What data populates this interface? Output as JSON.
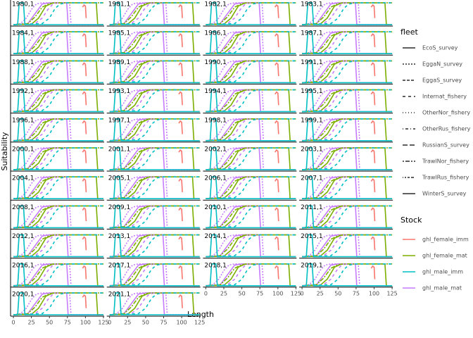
{
  "chart_data": {
    "type": "line",
    "xlabel": "Length",
    "ylabel": "Suitability",
    "xlim": [
      0,
      125
    ],
    "ylim": [
      0,
      1
    ],
    "xticks": [
      0,
      25,
      50,
      75,
      100,
      125
    ],
    "panels": [
      "1980,1",
      "1981,1",
      "1982,1",
      "1983,1",
      "1984,1",
      "1985,1",
      "1986,1",
      "1987,1",
      "1988,1",
      "1989,1",
      "1990,1",
      "1991,1",
      "1992,1",
      "1993,1",
      "1994,1",
      "1995,1",
      "1996,1",
      "1997,1",
      "1998,1",
      "1999,1",
      "2000,1",
      "2001,1",
      "2002,1",
      "2003,1",
      "2004,1",
      "2005,1",
      "2006,1",
      "2007,1",
      "2008,1",
      "2009,1",
      "2010,1",
      "2011,1",
      "2012,1",
      "2013,1",
      "2014,1",
      "2015,1",
      "2016,1",
      "2017,1",
      "2018,1",
      "2019,1",
      "2020,1",
      "2021,1"
    ],
    "fleet_title": "fleet",
    "fleets": [
      {
        "name": "EcoS_survey",
        "dash": "none"
      },
      {
        "name": "EggaN_survey",
        "dash": "2 2"
      },
      {
        "name": "EggaS_survey",
        "dash": "4 2"
      },
      {
        "name": "Internat_fishery",
        "dash": "4 4"
      },
      {
        "name": "OtherNor_fishery",
        "dash": "1 3"
      },
      {
        "name": "OtherRus_fishery",
        "dash": "1 3 4 3"
      },
      {
        "name": "RussianS_survey",
        "dash": "7 3"
      },
      {
        "name": "TrawlNor_fishery",
        "dash": "2 2 6 2"
      },
      {
        "name": "TrawlRus_fishery",
        "dash": "1 2 2 2 3 2 4 2"
      },
      {
        "name": "WinterS_survey",
        "dash": "none"
      }
    ],
    "stock_title": "Stock",
    "stocks": [
      {
        "name": "ghl_female_imm",
        "color": "#F8766D"
      },
      {
        "name": "ghl_female_mat",
        "color": "#7CAE00"
      },
      {
        "name": "ghl_male_imm",
        "color": "#00BFC4"
      },
      {
        "name": "ghl_male_mat",
        "color": "#C77CFF"
      }
    ],
    "series": [
      {
        "name": "ghl_male_mat",
        "fleet": "EcoS_survey",
        "color": "#C77CFF",
        "x": [
          0,
          20,
          30,
          40,
          50,
          74,
          76,
          125
        ],
        "values": [
          0,
          0.05,
          0.5,
          0.95,
          1,
          1,
          0,
          0
        ]
      },
      {
        "name": "ghl_female_mat",
        "fleet": "EcoS_survey",
        "color": "#7CAE00",
        "x": [
          0,
          25,
          35,
          45,
          55,
          115,
          117,
          125
        ],
        "values": [
          0,
          0.02,
          0.3,
          0.85,
          1,
          1,
          0,
          0
        ]
      },
      {
        "name": "ghl_male_mat",
        "fleet": "EggaN_survey",
        "color": "#C77CFF",
        "x": [
          0,
          10,
          18,
          25,
          32,
          40,
          78,
          80,
          125
        ],
        "values": [
          0,
          0.05,
          0.3,
          0.7,
          0.95,
          1,
          1,
          0,
          0
        ]
      },
      {
        "name": "ghl_male_mat",
        "fleet": "Internat_fishery",
        "color": "#C77CFF",
        "x": [
          0,
          30,
          40,
          48,
          55,
          62,
          125
        ],
        "values": [
          0,
          0.05,
          0.3,
          0.7,
          0.95,
          1,
          1
        ]
      },
      {
        "name": "ghl_female_mat",
        "fleet": "TrawlNor_fishery",
        "color": "#7CAE00",
        "x": [
          0,
          20,
          30,
          40,
          50,
          60,
          125
        ],
        "values": [
          0,
          0.05,
          0.35,
          0.8,
          0.97,
          1,
          1
        ]
      },
      {
        "name": "ghl_male_imm",
        "fleet": "Internat_fishery",
        "color": "#00BFC4",
        "x": [
          0,
          40,
          50,
          58,
          65,
          75,
          125
        ],
        "values": [
          0,
          0.05,
          0.3,
          0.75,
          0.95,
          1,
          1
        ]
      },
      {
        "name": "ghl_male_imm",
        "fleet": "WinterS_survey",
        "color": "#00BFC4",
        "x": [
          0,
          6,
          8,
          14,
          16,
          125
        ],
        "values": [
          0,
          0,
          1,
          1,
          0,
          0
        ]
      },
      {
        "name": "ghl_female_imm",
        "fleet": "EcoS_survey",
        "color": "#F8766D",
        "x": [
          96,
          98,
          100,
          101
        ],
        "values": [
          0.8,
          0.9,
          0.85,
          0.3
        ]
      }
    ]
  }
}
